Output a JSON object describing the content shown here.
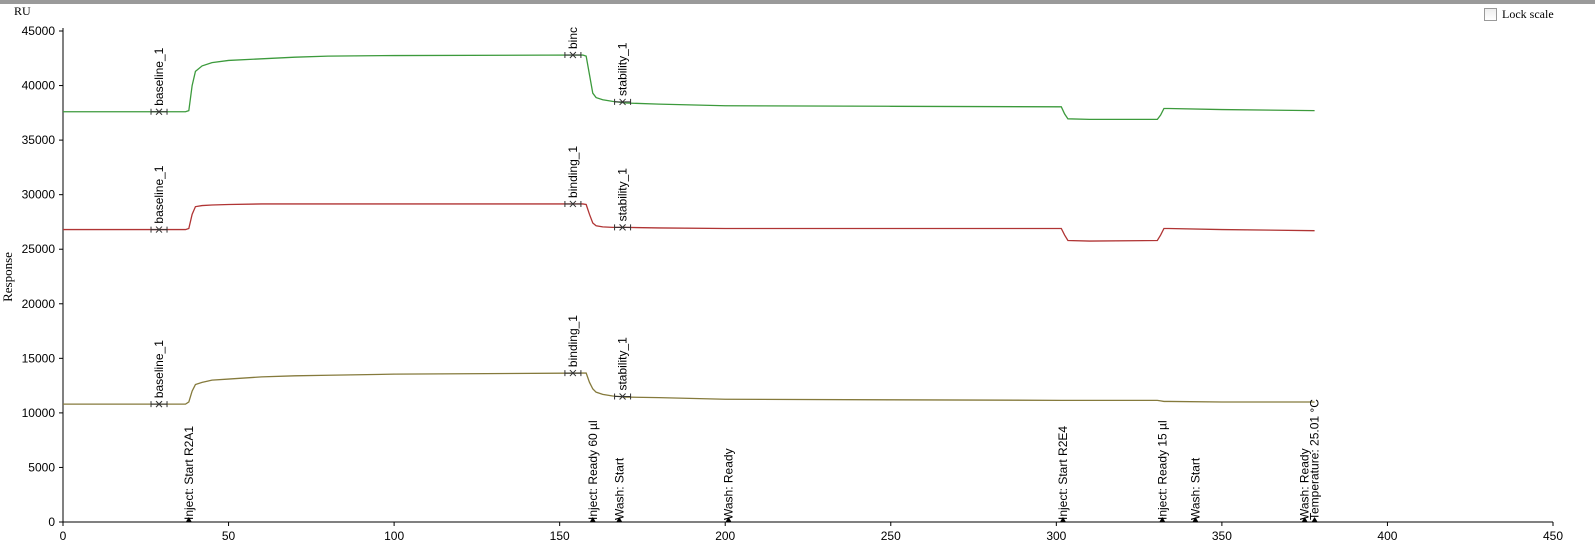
{
  "ui": {
    "lock_scale": "Lock scale"
  },
  "chart_data": {
    "type": "line",
    "y_unit": "RU",
    "ylabel": "Response",
    "x": [
      0,
      37,
      38,
      39,
      40,
      42,
      45,
      50,
      60,
      70,
      80,
      100,
      157,
      158,
      159,
      160,
      161,
      163,
      166,
      170,
      180,
      200,
      250,
      301.5,
      302.5,
      303.5,
      310,
      330.5,
      331.5,
      332.5,
      334,
      350,
      378
    ],
    "series": [
      {
        "color": "#3c9a3c",
        "values": [
          37600,
          37600,
          37700,
          40000,
          41300,
          41800,
          42100,
          42300,
          42450,
          42600,
          42700,
          42750,
          42800,
          42700,
          41000,
          39300,
          38900,
          38700,
          38550,
          38400,
          38300,
          38150,
          38100,
          38050,
          37400,
          36950,
          36900,
          36900,
          37300,
          37900,
          37900,
          37800,
          37700
        ],
        "markers": [
          {
            "label": "baseline_1",
            "x": 29,
            "y": 37600
          },
          {
            "label": "binc",
            "x": 154,
            "y": 42800
          },
          {
            "label": "stability_1",
            "x": 169,
            "y": 38500
          }
        ]
      },
      {
        "color": "#b03434",
        "values": [
          26800,
          26800,
          26900,
          28200,
          28900,
          29000,
          29050,
          29100,
          29150,
          29150,
          29150,
          29150,
          29150,
          29100,
          28200,
          27400,
          27150,
          27050,
          27000,
          27000,
          26950,
          26900,
          26900,
          26900,
          26300,
          25800,
          25750,
          25800,
          26300,
          26900,
          26900,
          26800,
          26700
        ],
        "markers": [
          {
            "label": "baseline_1",
            "x": 29,
            "y": 26800
          },
          {
            "label": "binding_1",
            "x": 154,
            "y": 29150
          },
          {
            "label": "stability_1",
            "x": 169,
            "y": 27000
          }
        ]
      },
      {
        "color": "#857a3c",
        "values": [
          10800,
          10800,
          11000,
          12000,
          12600,
          12800,
          13000,
          13100,
          13300,
          13400,
          13450,
          13550,
          13650,
          13650,
          12800,
          12200,
          11900,
          11700,
          11550,
          11450,
          11400,
          11250,
          11200,
          11150,
          11150,
          11150,
          11150,
          11150,
          11100,
          11050,
          11050,
          11000,
          11000
        ],
        "markers": [
          {
            "label": "baseline_1",
            "x": 29,
            "y": 10800
          },
          {
            "label": "binding_1",
            "x": 154,
            "y": 13650
          },
          {
            "label": "stability_1",
            "x": 169,
            "y": 11500
          }
        ]
      }
    ],
    "events": [
      {
        "label": "Inject: Start R2A1",
        "x": 38
      },
      {
        "label": "Inject: Ready 60 µl",
        "x": 160
      },
      {
        "label": "Wash: Start",
        "x": 168
      },
      {
        "label": "Wash: Ready",
        "x": 201
      },
      {
        "label": "Inject: Start R2E4",
        "x": 302
      },
      {
        "label": "Inject: Ready 15 µl",
        "x": 332
      },
      {
        "label": "Wash: Start",
        "x": 342
      },
      {
        "label": "Wash: Ready",
        "x": 375
      },
      {
        "label": "Temperature: 25.01 °C",
        "x": 378
      }
    ],
    "xlim": [
      0,
      450
    ],
    "xticks": [
      0,
      50,
      100,
      150,
      200,
      250,
      300,
      350,
      400,
      450
    ],
    "ylim": [
      0,
      45000
    ],
    "yticks": [
      0,
      5000,
      10000,
      15000,
      20000,
      25000,
      30000,
      35000,
      40000,
      45000
    ],
    "grid": false
  }
}
